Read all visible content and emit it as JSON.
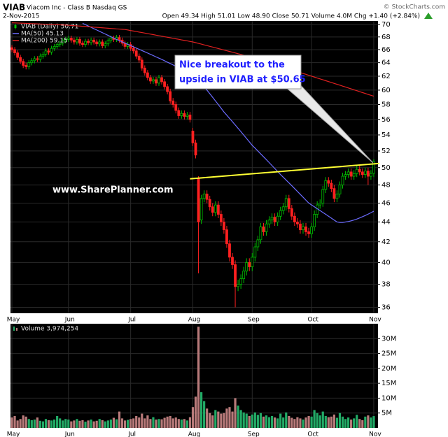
{
  "header": {
    "symbol": "VIAB",
    "name": "Viacom Inc - Class B Nasdaq GS",
    "copyright": "© StockCharts.com",
    "date": "2-Nov-2015",
    "quote": "Open 49.34 High 51.01 Low 48.90 Close 50.71 Volume 4.0M Chg +1.40 (+2.84%)"
  },
  "chart_data": [
    {
      "type": "candlestick",
      "log_scale": true,
      "grid": true,
      "legend": "top-left",
      "watermark": "www.SharePlanner.com",
      "annotation": [
        "Nice breakout to the",
        "upside in VIAB at $50.65"
      ],
      "xlim": [
        -0.5,
        129.5
      ],
      "xticks": [
        {
          "value": 0,
          "label": "May"
        },
        {
          "value": 20,
          "label": "Jun"
        },
        {
          "value": 42,
          "label": "Jul"
        },
        {
          "value": 64,
          "label": "Aug"
        },
        {
          "value": 85,
          "label": "Sep"
        },
        {
          "value": 106,
          "label": "Oct"
        },
        {
          "value": 128,
          "label": "Nov"
        }
      ],
      "ylim": [
        35.5,
        70.6
      ],
      "yticks": [
        36,
        38,
        40,
        42,
        44,
        46,
        48,
        50,
        52,
        54,
        56,
        58,
        60,
        62,
        64,
        66,
        68,
        70
      ],
      "trendline": {
        "color": "#ffff33",
        "x": [
          63,
          130
        ],
        "values": [
          48.7,
          50.5
        ]
      },
      "series": [
        {
          "name": "VIAB (Daily) 50.71",
          "color": "#00c000",
          "down_color": "#ff2020",
          "open": [
            66.3,
            66.0,
            65.5,
            64.8,
            64.2,
            63.6,
            63.4,
            64.0,
            64.3,
            64.6,
            64.5,
            65.0,
            65.3,
            65.8,
            65.6,
            66.2,
            66.5,
            66.8,
            67.0,
            67.4,
            67.6,
            67.8,
            67.5,
            67.2,
            67.6,
            67.0,
            66.8,
            67.3,
            67.1,
            67.5,
            67.2,
            66.9,
            67.2,
            66.6,
            66.9,
            67.4,
            67.8,
            67.6,
            67.9,
            67.5,
            67.0,
            66.5,
            66.8,
            66.2,
            65.8,
            65.0,
            64.4,
            63.2,
            62.5,
            61.8,
            61.3,
            61.5,
            61.0,
            61.8,
            61.2,
            60.5,
            59.8,
            58.5,
            58.0,
            57.2,
            56.5,
            56.8,
            56.4,
            56.6,
            54.5,
            53.0,
            48.8,
            44.2,
            46.5,
            47.0,
            46.4,
            45.6,
            45.0,
            45.8,
            44.8,
            44.0,
            43.2,
            41.8,
            40.5,
            39.8,
            37.8,
            38.0,
            38.5,
            39.2,
            40.0,
            39.6,
            40.5,
            41.5,
            42.2,
            43.5,
            43.0,
            43.8,
            44.2,
            44.5,
            44.0,
            44.6,
            45.2,
            45.6,
            46.5,
            45.4,
            44.6,
            44.0,
            43.8,
            43.2,
            43.5,
            43.0,
            42.8,
            43.5,
            44.8,
            45.8,
            46.0,
            47.5,
            48.5,
            48.2,
            47.6,
            46.5,
            47.0,
            48.0,
            49.0,
            49.2,
            49.5,
            49.0,
            49.3,
            49.8,
            49.5,
            49.2,
            49.6,
            49.0,
            49.34
          ],
          "high": [
            66.7,
            66.4,
            65.9,
            65.2,
            64.6,
            64.0,
            64.4,
            64.7,
            65.0,
            65.0,
            65.4,
            65.7,
            66.2,
            66.2,
            66.6,
            66.9,
            67.2,
            67.4,
            67.8,
            68.0,
            68.2,
            68.2,
            67.9,
            68.0,
            68.0,
            67.4,
            67.7,
            67.7,
            67.9,
            67.9,
            67.6,
            67.6,
            67.6,
            67.3,
            67.8,
            68.2,
            68.2,
            68.3,
            68.3,
            67.9,
            67.4,
            67.2,
            67.2,
            66.6,
            66.2,
            65.4,
            64.8,
            63.6,
            62.9,
            62.2,
            61.9,
            61.9,
            62.2,
            62.2,
            61.6,
            60.9,
            60.2,
            58.9,
            58.4,
            57.6,
            57.2,
            57.2,
            57.0,
            57.0,
            54.9,
            53.4,
            49.0,
            46.9,
            47.4,
            47.4,
            46.8,
            46.0,
            46.2,
            46.2,
            45.2,
            44.4,
            43.6,
            42.2,
            40.9,
            40.2,
            38.4,
            38.9,
            39.6,
            40.4,
            40.4,
            40.9,
            41.9,
            42.6,
            43.9,
            43.9,
            44.2,
            44.6,
            44.9,
            44.9,
            45.0,
            45.6,
            46.0,
            46.9,
            46.9,
            45.8,
            45.0,
            44.4,
            44.2,
            43.9,
            43.9,
            43.4,
            43.9,
            45.2,
            46.2,
            46.4,
            47.9,
            48.9,
            48.9,
            48.6,
            48.0,
            47.4,
            48.4,
            49.4,
            49.6,
            49.9,
            49.9,
            49.7,
            50.2,
            50.2,
            49.9,
            50.0,
            50.0,
            49.7,
            51.01
          ],
          "low": [
            65.6,
            65.1,
            64.4,
            63.8,
            63.2,
            63.0,
            63.0,
            63.6,
            63.9,
            64.1,
            64.1,
            64.6,
            64.9,
            65.2,
            65.2,
            65.8,
            66.1,
            66.4,
            66.6,
            67.0,
            67.2,
            67.1,
            66.8,
            66.8,
            66.6,
            66.4,
            66.4,
            66.7,
            66.7,
            66.8,
            66.5,
            66.5,
            66.2,
            66.2,
            66.5,
            67.0,
            67.2,
            67.2,
            67.1,
            66.6,
            66.1,
            66.1,
            65.8,
            65.4,
            64.6,
            64.0,
            62.8,
            62.1,
            61.4,
            60.9,
            60.9,
            60.6,
            60.6,
            60.8,
            60.1,
            59.4,
            58.1,
            57.6,
            56.8,
            56.1,
            56.1,
            56.0,
            56.0,
            55.6,
            52.6,
            51.1,
            39.0,
            43.8,
            46.1,
            46.0,
            45.2,
            44.6,
            44.6,
            44.4,
            43.6,
            42.8,
            41.4,
            40.1,
            39.4,
            36.0,
            37.4,
            37.6,
            38.1,
            38.8,
            39.2,
            39.2,
            40.1,
            41.1,
            41.8,
            42.6,
            42.6,
            43.4,
            43.8,
            43.6,
            43.6,
            44.2,
            44.8,
            45.2,
            45.0,
            44.2,
            43.6,
            43.4,
            42.8,
            42.8,
            42.6,
            42.4,
            42.4,
            43.1,
            44.4,
            45.4,
            45.6,
            47.1,
            47.8,
            47.2,
            46.1,
            46.1,
            46.6,
            47.6,
            48.6,
            48.8,
            48.6,
            48.6,
            48.9,
            49.1,
            48.8,
            48.8,
            48.0,
            48.6,
            48.9
          ],
          "close": [
            66.0,
            65.5,
            64.8,
            64.2,
            63.6,
            63.4,
            64.0,
            64.3,
            64.6,
            64.5,
            65.0,
            65.3,
            65.8,
            65.6,
            66.2,
            66.5,
            66.8,
            67.0,
            67.4,
            67.6,
            67.8,
            67.5,
            67.2,
            67.6,
            67.0,
            66.8,
            67.3,
            67.1,
            67.5,
            67.2,
            66.9,
            67.2,
            66.6,
            66.9,
            67.4,
            67.8,
            67.6,
            67.9,
            67.5,
            67.0,
            66.5,
            66.8,
            66.2,
            65.8,
            65.0,
            64.4,
            63.2,
            62.5,
            61.8,
            61.3,
            61.5,
            61.0,
            61.8,
            61.2,
            60.5,
            59.8,
            58.5,
            58.0,
            57.2,
            56.5,
            56.8,
            56.4,
            56.6,
            56.0,
            53.0,
            51.5,
            44.0,
            46.5,
            47.0,
            46.4,
            45.6,
            45.0,
            45.8,
            44.8,
            44.0,
            43.2,
            41.8,
            40.5,
            39.8,
            37.8,
            38.0,
            38.5,
            39.2,
            40.0,
            39.6,
            40.5,
            41.5,
            42.2,
            43.5,
            43.0,
            43.8,
            44.2,
            44.5,
            44.0,
            44.6,
            45.2,
            45.6,
            46.5,
            45.4,
            44.6,
            44.0,
            43.8,
            43.2,
            43.5,
            43.0,
            42.8,
            43.5,
            44.8,
            45.8,
            46.0,
            47.5,
            48.5,
            48.2,
            47.6,
            46.5,
            47.0,
            48.0,
            49.0,
            49.2,
            49.5,
            49.0,
            49.3,
            49.8,
            49.5,
            49.2,
            49.6,
            49.0,
            49.31,
            50.71
          ]
        },
        {
          "name": "MA(50) 45.13",
          "color": "#6b6bff",
          "values": [
            null,
            null,
            null,
            null,
            null,
            null,
            null,
            null,
            null,
            null,
            null,
            null,
            null,
            null,
            null,
            null,
            null,
            null,
            null,
            null,
            null,
            null,
            null,
            null,
            null,
            70.2,
            70.0,
            69.77,
            69.55,
            69.33,
            69.12,
            68.9,
            68.68,
            68.47,
            68.25,
            68.03,
            67.82,
            67.6,
            67.41,
            67.21,
            67.02,
            66.82,
            66.63,
            66.44,
            66.24,
            66.05,
            65.85,
            65.66,
            65.47,
            65.27,
            65.08,
            64.88,
            64.69,
            64.5,
            64.29,
            64.08,
            63.88,
            63.67,
            63.46,
            63.25,
            63.04,
            62.83,
            62.63,
            62.42,
            62.21,
            62.0,
            61.5,
            61.0,
            60.5,
            60.0,
            59.5,
            59.0,
            58.5,
            58.0,
            57.5,
            57.0,
            56.57,
            56.14,
            55.71,
            55.28,
            54.85,
            54.42,
            53.99,
            53.56,
            53.13,
            52.7,
            52.35,
            52.0,
            51.65,
            51.3,
            50.95,
            50.6,
            50.25,
            49.9,
            49.55,
            49.2,
            48.88,
            48.56,
            48.24,
            47.92,
            47.6,
            47.28,
            46.96,
            46.64,
            46.32,
            46.0,
            45.8,
            45.6,
            45.4,
            45.2,
            45.0,
            44.8,
            44.6,
            44.4,
            44.2,
            44.0,
            43.95,
            43.95,
            44.0,
            44.05,
            44.12,
            44.2,
            44.3,
            44.42,
            44.55,
            44.68,
            44.82,
            44.97,
            45.13
          ]
        },
        {
          "name": "MA(200) 59.15",
          "color": "#e02020",
          "values": [
            70.3,
            70.28,
            70.26,
            70.24,
            70.22,
            70.2,
            70.18,
            70.16,
            70.14,
            70.12,
            70.1,
            70.08,
            70.06,
            70.04,
            70.02,
            70.0,
            69.98,
            69.96,
            69.94,
            69.92,
            69.9,
            69.86,
            69.83,
            69.79,
            69.76,
            69.72,
            69.69,
            69.65,
            69.62,
            69.58,
            69.55,
            69.51,
            69.48,
            69.44,
            69.41,
            69.37,
            69.34,
            69.3,
            69.27,
            69.23,
            69.2,
            69.12,
            69.03,
            68.95,
            68.87,
            68.78,
            68.7,
            68.62,
            68.53,
            68.45,
            68.37,
            68.28,
            68.2,
            68.12,
            68.03,
            67.95,
            67.87,
            67.78,
            67.7,
            67.62,
            67.53,
            67.45,
            67.37,
            67.28,
            67.2,
            67.09,
            66.97,
            66.86,
            66.74,
            66.63,
            66.51,
            66.4,
            66.29,
            66.17,
            66.06,
            65.94,
            65.83,
            65.71,
            65.6,
            65.49,
            65.37,
            65.26,
            65.14,
            65.03,
            64.91,
            64.8,
            64.67,
            64.53,
            64.4,
            64.27,
            64.13,
            64.0,
            63.87,
            63.73,
            63.6,
            63.47,
            63.33,
            63.2,
            63.07,
            62.93,
            62.8,
            62.67,
            62.53,
            62.4,
            62.27,
            62.13,
            62.0,
            61.87,
            61.74,
            61.61,
            61.48,
            61.35,
            61.22,
            61.09,
            60.96,
            60.83,
            60.7,
            60.57,
            60.44,
            60.31,
            60.18,
            60.05,
            59.92,
            59.79,
            59.66,
            59.53,
            59.4,
            59.27,
            59.15
          ]
        }
      ]
    },
    {
      "type": "bar",
      "grid": true,
      "xlim": [
        -0.5,
        129.5
      ],
      "xticks": [
        {
          "value": 0,
          "label": "May"
        },
        {
          "value": 20,
          "label": "Jun"
        },
        {
          "value": 42,
          "label": "Jul"
        },
        {
          "value": 64,
          "label": "Aug"
        },
        {
          "value": 85,
          "label": "Sep"
        },
        {
          "value": 106,
          "label": "Oct"
        },
        {
          "value": 128,
          "label": "Nov"
        }
      ],
      "ylim": [
        0,
        35
      ],
      "yticks": [
        {
          "value": 5,
          "label": "5M"
        },
        {
          "value": 10,
          "label": "10M"
        },
        {
          "value": 15,
          "label": "15M"
        },
        {
          "value": 20,
          "label": "20M"
        },
        {
          "value": 25,
          "label": "25M"
        },
        {
          "value": 30,
          "label": "30M"
        }
      ],
      "series": [
        {
          "name": "Volume 3,974,254",
          "color": "#22aa66",
          "down_color": "#b87a7a",
          "values": [
            3.5,
            4.0,
            2.5,
            3.0,
            4.2,
            3.8,
            3.0,
            2.6,
            2.8,
            3.5,
            2.4,
            2.2,
            3.0,
            2.6,
            2.5,
            2.8,
            4.0,
            3.2,
            2.5,
            3.0,
            2.8,
            2.2,
            2.5,
            3.0,
            2.4,
            2.6,
            2.1,
            2.5,
            2.8,
            2.2,
            2.4,
            3.0,
            2.6,
            2.2,
            2.5,
            2.8,
            3.4,
            2.9,
            5.5,
            3.2,
            2.5,
            2.7,
            3.0,
            3.2,
            4.0,
            3.5,
            4.8,
            3.2,
            4.2,
            3.0,
            3.6,
            2.8,
            3.0,
            2.9,
            3.4,
            3.8,
            4.0,
            3.2,
            3.5,
            3.0,
            2.8,
            3.0,
            2.5,
            3.6,
            7.0,
            10.5,
            34.0,
            12.0,
            9.0,
            6.5,
            5.0,
            4.2,
            6.0,
            5.5,
            4.8,
            5.0,
            6.5,
            7.0,
            5.5,
            10.0,
            7.5,
            6.0,
            5.2,
            4.8,
            4.0,
            4.5,
            5.2,
            4.4,
            5.0,
            3.8,
            4.2,
            3.6,
            4.0,
            3.5,
            3.2,
            4.8,
            3.5,
            5.2,
            4.0,
            3.4,
            3.0,
            3.6,
            3.2,
            2.8,
            3.5,
            4.0,
            3.8,
            6.0,
            5.0,
            4.2,
            5.5,
            4.0,
            3.6,
            3.8,
            4.5,
            3.4,
            5.0,
            3.8,
            3.0,
            3.5,
            2.8,
            3.2,
            4.4,
            3.0,
            2.6,
            3.8,
            4.2,
            3.5,
            3.974254
          ]
        }
      ]
    }
  ]
}
